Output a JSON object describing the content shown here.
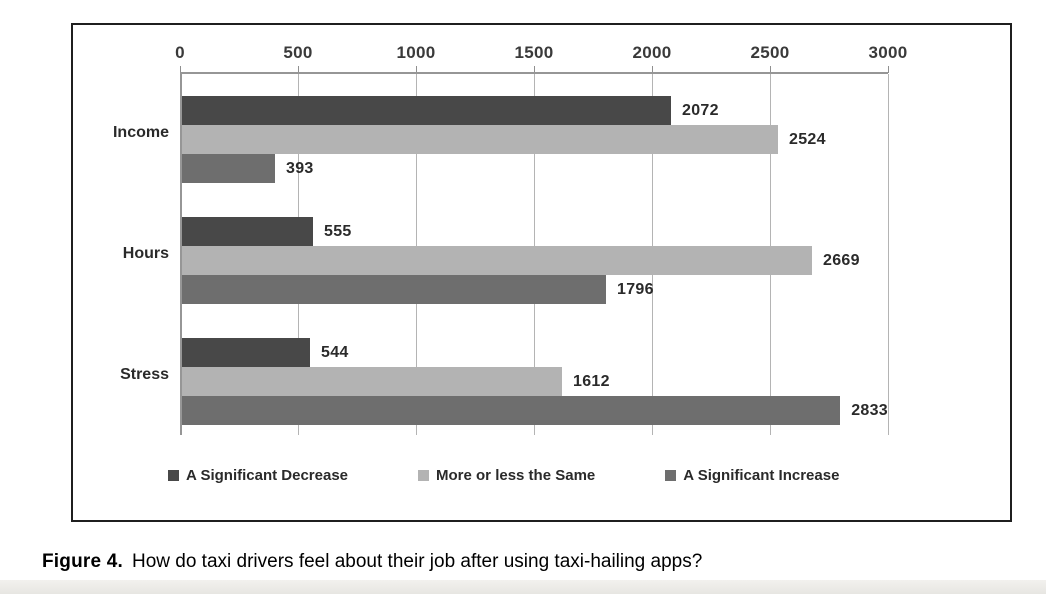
{
  "figure": {
    "caption_label": "Figure 4.",
    "caption_text": "How do taxi drivers feel about their job after using taxi-hailing apps?"
  },
  "chart_data": {
    "type": "bar",
    "orientation": "horizontal",
    "title": "",
    "xlabel": "",
    "ylabel": "",
    "categories": [
      "Income",
      "Hours",
      "Stress"
    ],
    "series": [
      {
        "name": "A Significant Decrease",
        "color": "#484848",
        "values": [
          2072,
          555,
          544
        ]
      },
      {
        "name": "More or less the Same",
        "color": "#b3b3b3",
        "values": [
          2524,
          2669,
          1612
        ]
      },
      {
        "name": "A Significant Increase",
        "color": "#6e6e6e",
        "values": [
          393,
          1796,
          2833
        ]
      }
    ],
    "xlim": [
      0,
      3000
    ],
    "xticks": [
      0,
      500,
      1000,
      1500,
      2000,
      2500,
      3000
    ],
    "axis_position": "top",
    "grid": true,
    "data_labels": true,
    "legend_position": "bottom"
  },
  "colors": {
    "frame_border": "#1f1f1f",
    "axis_line": "#969696",
    "gridline": "#b4b4b4",
    "text": "#2a2a2a"
  }
}
